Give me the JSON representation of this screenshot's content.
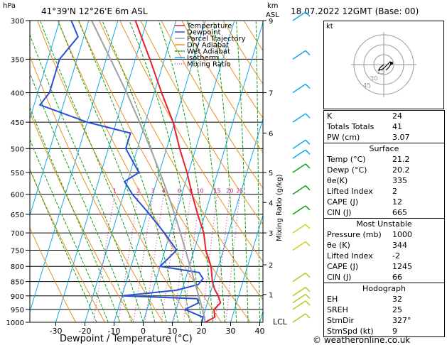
{
  "header": {
    "units_left": "hPa",
    "location": "41°39'N 12°26'E 6m ASL",
    "units_right_km": "km",
    "units_right_asl": "ASL",
    "datetime": "18.07.2022 12GMT (Base: 00)"
  },
  "footer": {
    "xlabel": "Dewpoint / Temperature (°C)",
    "copyright": "© weatheronline.co.uk",
    "lcl": "LCL",
    "mixing_ratio_label": "Mixing Ratio (g/kg)"
  },
  "legend": [
    {
      "label": "Temperature",
      "color": "#e8202a"
    },
    {
      "label": "Dewpoint",
      "color": "#2a4fd8"
    },
    {
      "label": "Parcel Trajectory",
      "color": "#a0a0a0"
    },
    {
      "label": "Dry Adiabat",
      "color": "#e89020"
    },
    {
      "label": "Wet Adiabat",
      "color": "#10a010"
    },
    {
      "label": "Isotherm",
      "color": "#10a8e8"
    },
    {
      "label": "Mixing Ratio",
      "color": "#d0209a"
    }
  ],
  "chart_data": {
    "type": "line",
    "title": "Skew-T log-P sounding",
    "xlabel": "Dewpoint / Temperature (°C)",
    "ylabel": "hPa",
    "x_ticks": [
      -30,
      -20,
      -10,
      0,
      10,
      20,
      30,
      40
    ],
    "pressure_levels": [
      300,
      350,
      400,
      450,
      500,
      550,
      600,
      650,
      700,
      750,
      800,
      850,
      900,
      950,
      1000
    ],
    "km_ticks": [
      {
        "p": 300,
        "label": "9"
      },
      {
        "p": 400,
        "label": "7"
      },
      {
        "p": 470,
        "label": "6"
      },
      {
        "p": 550,
        "label": "5"
      },
      {
        "p": 620,
        "label": "4"
      },
      {
        "p": 700,
        "label": "3"
      },
      {
        "p": 795,
        "label": "2"
      },
      {
        "p": 895,
        "label": "1"
      }
    ],
    "mixing_ratio_labels": [
      "1",
      "2",
      "3",
      "4",
      "6",
      "8",
      "10",
      "15",
      "20",
      "25"
    ],
    "mixing_ratio_values": [
      1,
      2,
      3,
      4,
      6,
      8,
      10,
      15,
      20,
      25
    ],
    "series": [
      {
        "name": "Temperature",
        "color": "#e8202a",
        "points": [
          [
            1000,
            21.2
          ],
          [
            980,
            24.0
          ],
          [
            950,
            23.0
          ],
          [
            925,
            24.5
          ],
          [
            900,
            23.0
          ],
          [
            875,
            21.0
          ],
          [
            850,
            19.5
          ],
          [
            800,
            17.5
          ],
          [
            750,
            14.0
          ],
          [
            700,
            11.5
          ],
          [
            650,
            7.5
          ],
          [
            600,
            3.5
          ],
          [
            550,
            -0.5
          ],
          [
            500,
            -5.5
          ],
          [
            450,
            -10.5
          ],
          [
            400,
            -17.5
          ],
          [
            350,
            -25.0
          ],
          [
            300,
            -34.0
          ]
        ]
      },
      {
        "name": "Dewpoint",
        "color": "#2a4fd8",
        "points": [
          [
            1000,
            20.2
          ],
          [
            980,
            20.0
          ],
          [
            950,
            13.0
          ],
          [
            925,
            17.0
          ],
          [
            910,
            16.0
          ],
          [
            900,
            -10.0
          ],
          [
            880,
            8.0
          ],
          [
            860,
            15.0
          ],
          [
            840,
            16.0
          ],
          [
            820,
            14.0
          ],
          [
            800,
            0.0
          ],
          [
            750,
            4.0
          ],
          [
            700,
            -2.0
          ],
          [
            650,
            -9.0
          ],
          [
            600,
            -17.0
          ],
          [
            570,
            -21.0
          ],
          [
            550,
            -17.0
          ],
          [
            500,
            -24.0
          ],
          [
            470,
            -24.0
          ],
          [
            450,
            -40.0
          ],
          [
            420,
            -58.0
          ],
          [
            400,
            -56.0
          ],
          [
            350,
            -56.0
          ],
          [
            320,
            -52.0
          ],
          [
            300,
            -56.0
          ]
        ]
      },
      {
        "name": "Parcel Trajectory",
        "color": "#a0a0a0",
        "points": [
          [
            1000,
            21.2
          ],
          [
            980,
            20.5
          ],
          [
            950,
            19.0
          ],
          [
            900,
            16.3
          ],
          [
            850,
            13.4
          ],
          [
            800,
            10.3
          ],
          [
            750,
            7.0
          ],
          [
            700,
            3.5
          ],
          [
            650,
            -0.4
          ],
          [
            600,
            -4.8
          ],
          [
            550,
            -9.8
          ],
          [
            500,
            -15.5
          ],
          [
            450,
            -22.0
          ],
          [
            400,
            -29.5
          ],
          [
            350,
            -38.5
          ],
          [
            300,
            -49.0
          ]
        ]
      }
    ],
    "hodograph_rings": [
      "15",
      "30",
      "45"
    ],
    "indices": [
      {
        "label": "K",
        "value": "24"
      },
      {
        "label": "Totals Totals",
        "value": "41"
      },
      {
        "label": "PW (cm)",
        "value": "3.07"
      }
    ],
    "surface": {
      "title": "Surface",
      "rows": [
        {
          "label": "Temp (°C)",
          "value": "21.2"
        },
        {
          "label": "Dewp (°C)",
          "value": "20.2"
        },
        {
          "label": "θe(K)",
          "value": "335"
        },
        {
          "label": "Lifted Index",
          "value": "2"
        },
        {
          "label": "CAPE (J)",
          "value": "12"
        },
        {
          "label": "CIN (J)",
          "value": "665"
        }
      ]
    },
    "most_unstable": {
      "title": "Most Unstable",
      "rows": [
        {
          "label": "Pressure (mb)",
          "value": "1000"
        },
        {
          "label": "θe (K)",
          "value": "344"
        },
        {
          "label": "Lifted Index",
          "value": "-2"
        },
        {
          "label": "CAPE (J)",
          "value": "1245"
        },
        {
          "label": "CIN (J)",
          "value": "66"
        }
      ]
    },
    "hodograph": {
      "title": "Hodograph",
      "rows": [
        {
          "label": "EH",
          "value": "32"
        },
        {
          "label": "SREH",
          "value": "25"
        },
        {
          "label": "StmDir",
          "value": "327°"
        },
        {
          "label": "StmSpd (kt)",
          "value": "9"
        }
      ]
    }
  }
}
